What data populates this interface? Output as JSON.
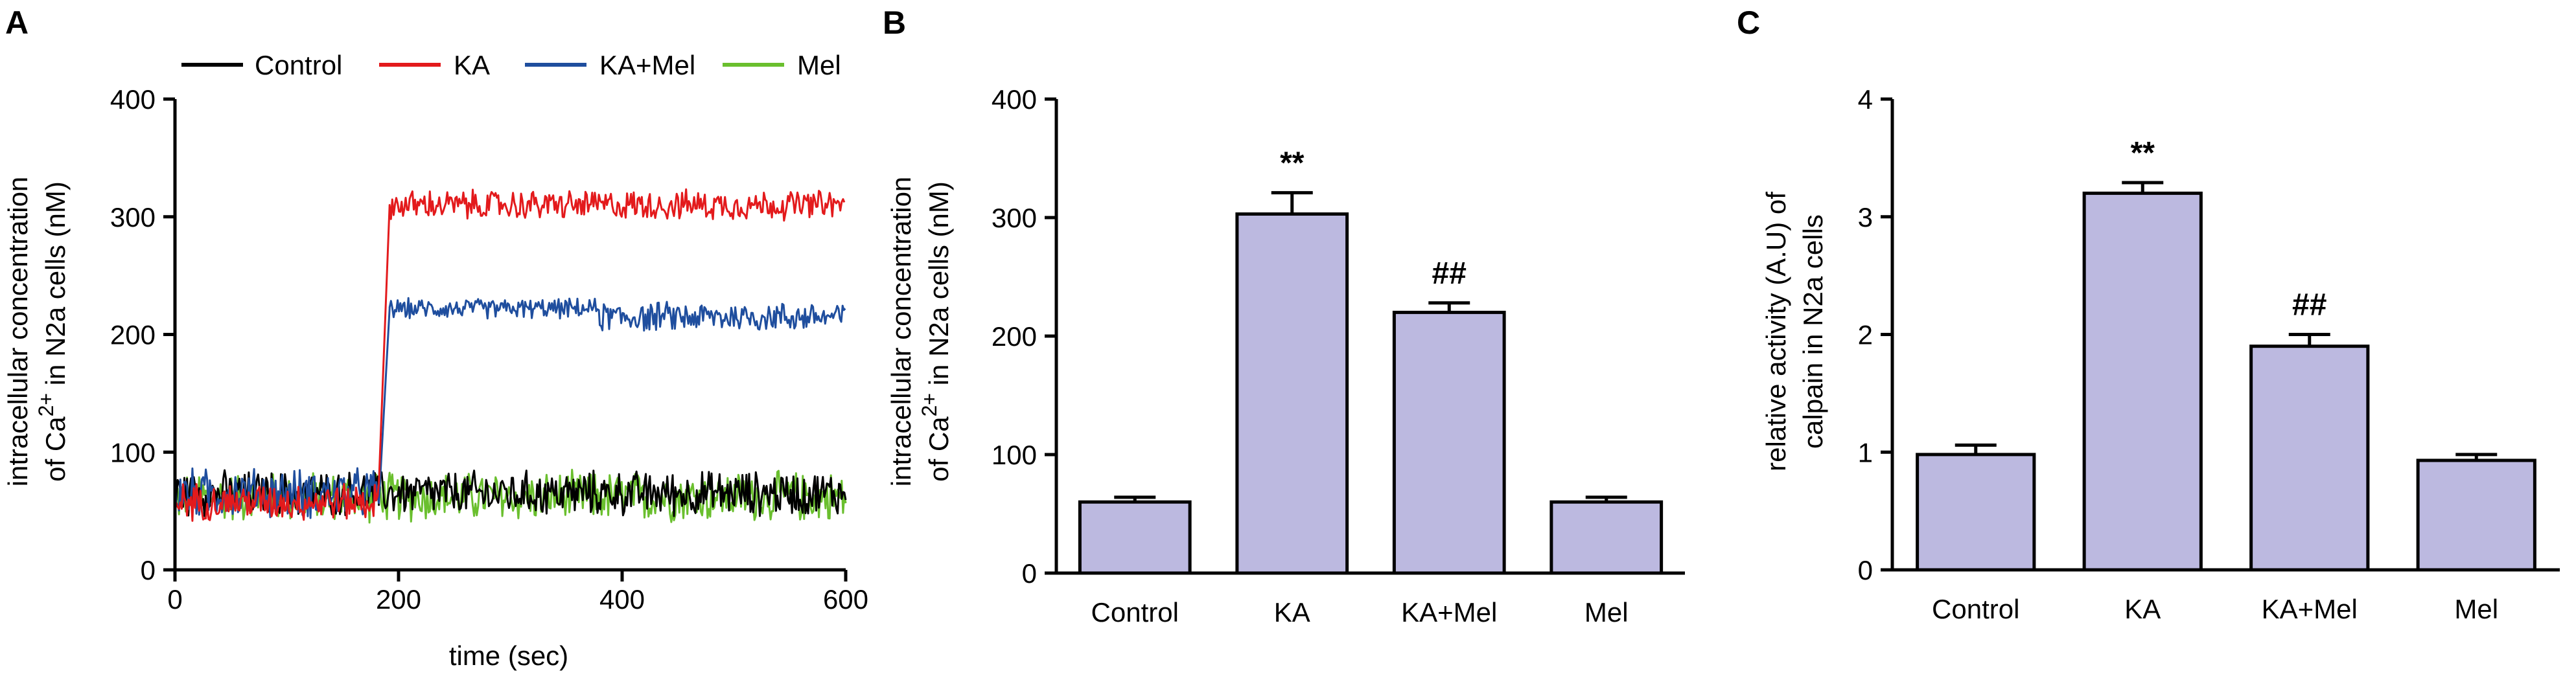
{
  "chart_data": [
    {
      "panel": "A",
      "type": "line",
      "xlabel": "time (sec)",
      "ylabel_line1": "intracellular concentration",
      "ylabel_line2_pre": "of Ca",
      "ylabel_sup": "2+",
      "ylabel_line2_post": " in N2a cells (nM)",
      "xlim": [
        0,
        600
      ],
      "ylim": [
        0,
        400
      ],
      "xticks": [
        "0",
        "200",
        "400",
        "600"
      ],
      "yticks": [
        "0",
        "100",
        "200",
        "300",
        "400"
      ],
      "legend_position": "top",
      "series": [
        {
          "name": "Control",
          "color": "#000000",
          "segments": [
            {
              "from": 0,
              "to": 600,
              "mean": 65,
              "noise": 18
            }
          ]
        },
        {
          "name": "KA",
          "color": "#e31a1c",
          "segments": [
            {
              "from": 0,
              "to": 183,
              "mean": 58,
              "noise": 15
            },
            {
              "from": 192,
              "to": 600,
              "mean": 310,
              "noise": 12
            }
          ]
        },
        {
          "name": "KA+Mel",
          "color": "#1f4e9e",
          "segments": [
            {
              "from": 0,
              "to": 183,
              "mean": 65,
              "noise": 20
            },
            {
              "from": 192,
              "to": 380,
              "mean": 222,
              "noise": 8
            },
            {
              "from": 380,
              "to": 600,
              "mean": 215,
              "noise": 12
            }
          ]
        },
        {
          "name": "Mel",
          "color": "#6abf2e",
          "segments": [
            {
              "from": 0,
              "to": 600,
              "mean": 62,
              "noise": 20
            }
          ]
        }
      ]
    },
    {
      "panel": "B",
      "type": "bar",
      "ylabel_line1": "intracellular concentration",
      "ylabel_line2_pre": "of Ca",
      "ylabel_sup": "2+",
      "ylabel_line2_post": " in N2a cells (nM)",
      "categories": [
        "Control",
        "KA",
        "KA+Mel",
        "Mel"
      ],
      "values": [
        60,
        303,
        220,
        60
      ],
      "errors": [
        4,
        18,
        8,
        4
      ],
      "annotations": [
        "",
        "**",
        "##",
        ""
      ],
      "ylim": [
        0,
        400
      ],
      "yticks": [
        "0",
        "100",
        "200",
        "300",
        "400"
      ],
      "bar_color": "#bcb9e0"
    },
    {
      "panel": "C",
      "type": "bar",
      "ylabel_line1": "relative activity (A.U) of",
      "ylabel_line2": "calpain in N2a cells",
      "categories": [
        "Control",
        "KA",
        "KA+Mel",
        "Mel"
      ],
      "values": [
        0.98,
        3.2,
        1.9,
        0.93
      ],
      "errors": [
        0.08,
        0.09,
        0.1,
        0.05
      ],
      "annotations": [
        "",
        "**",
        "##",
        ""
      ],
      "ylim": [
        0,
        4
      ],
      "yticks": [
        "0",
        "1",
        "2",
        "3",
        "4"
      ],
      "bar_color": "#bcb9e0"
    }
  ]
}
